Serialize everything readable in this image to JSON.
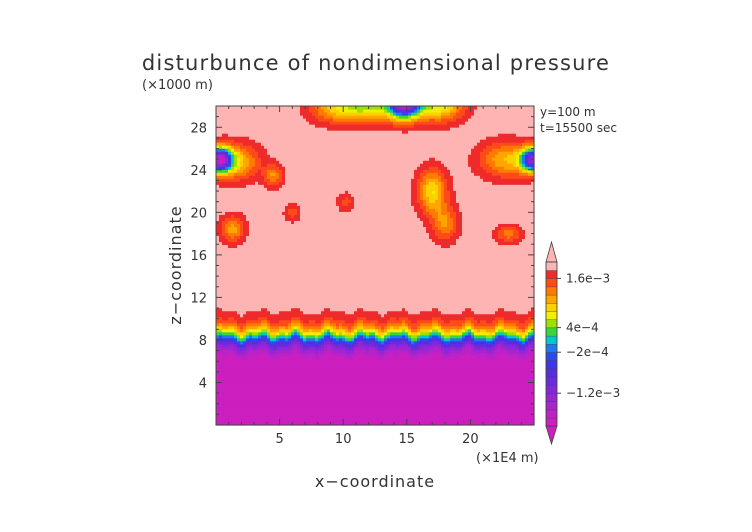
{
  "chart_data": {
    "type": "heatmap",
    "title": "disturbunce of nondimensional pressure",
    "xlabel": "x−coordinate",
    "ylabel": "z−coordinate",
    "x_unit": "(×1E4 m)",
    "y_unit": "(×1000 m)",
    "annotations": [
      "y=100  m",
      "t=15500 sec"
    ],
    "xlim": [
      0,
      25
    ],
    "ylim": [
      0,
      30
    ],
    "x_ticks": [
      5,
      10,
      15,
      20
    ],
    "y_ticks": [
      4,
      8,
      12,
      16,
      20,
      24,
      28
    ],
    "colorbar": {
      "labels": [
        {
          "text": "1.6e−3",
          "value": 0.0016
        },
        {
          "text": "4e−4",
          "value": 0.0004
        },
        {
          "text": "−2e−4",
          "value": -0.0002
        },
        {
          "text": "−1.2e−3",
          "value": -0.0012
        }
      ],
      "levels": [
        -0.002,
        -0.0018,
        -0.0016,
        -0.0014,
        -0.0012,
        -0.001,
        -0.0008,
        -0.0006,
        -0.0004,
        -0.0002,
        0.0,
        0.0002,
        0.0004,
        0.0006,
        0.0008,
        0.001,
        0.0012,
        0.0014,
        0.0016,
        0.0018,
        0.002
      ],
      "colors": [
        "#cc1fbf",
        "#bb22c8",
        "#a824cf",
        "#9526d5",
        "#8028da",
        "#6a2ade",
        "#552ee2",
        "#4035e6",
        "#2a4af0",
        "#1e78f2",
        "#00c8c8",
        "#38d838",
        "#9ee000",
        "#f0f000",
        "#ffd000",
        "#ffa500",
        "#ff7a00",
        "#ff4a1a",
        "#ee2a2a",
        "#ffb4b4"
      ]
    },
    "field_model": {
      "surface_value": -0.0021,
      "transition_z": 8.2,
      "transition_width": 1.5,
      "background_value": 0.0019,
      "blobs": [
        {
          "x": 0.3,
          "z": 25,
          "a": -0.0032,
          "sx": 0.9,
          "sz": 1.1
        },
        {
          "x": 1.5,
          "z": 24.8,
          "a": -0.001,
          "sx": 1.8,
          "sz": 1.6
        },
        {
          "x": 25,
          "z": 25,
          "a": -0.003,
          "sx": 1.0,
          "sz": 1.1
        },
        {
          "x": 22.8,
          "z": 25,
          "a": -0.0009,
          "sx": 2.0,
          "sz": 1.6
        },
        {
          "x": 14.8,
          "z": 30.5,
          "a": -0.0038,
          "sx": 1.3,
          "sz": 1.5
        },
        {
          "x": 11.8,
          "z": 30.2,
          "a": -0.0014,
          "sx": 2.0,
          "sz": 1.5
        },
        {
          "x": 17.6,
          "z": 30.2,
          "a": -0.0013,
          "sx": 1.8,
          "sz": 1.5
        },
        {
          "x": 9.2,
          "z": 29.8,
          "a": -0.0008,
          "sx": 1.8,
          "sz": 1.3
        },
        {
          "x": 17.0,
          "z": 22.0,
          "a": -0.0011,
          "sx": 1.1,
          "sz": 2.0
        },
        {
          "x": 18.0,
          "z": 19.0,
          "a": -0.0007,
          "sx": 1.0,
          "sz": 1.6
        },
        {
          "x": 1.3,
          "z": 18.5,
          "a": -0.0008,
          "sx": 0.9,
          "sz": 1.2
        },
        {
          "x": 4.5,
          "z": 23.5,
          "a": -0.0007,
          "sx": 0.7,
          "sz": 1.0
        },
        {
          "x": 23.0,
          "z": 18.0,
          "a": -0.0006,
          "sx": 1.0,
          "sz": 0.8
        },
        {
          "x": 6.0,
          "z": 20.0,
          "a": -0.0004,
          "sx": 0.6,
          "sz": 0.8
        },
        {
          "x": 10.2,
          "z": 21.0,
          "a": -0.0004,
          "sx": 0.6,
          "sz": 0.8
        }
      ]
    }
  }
}
